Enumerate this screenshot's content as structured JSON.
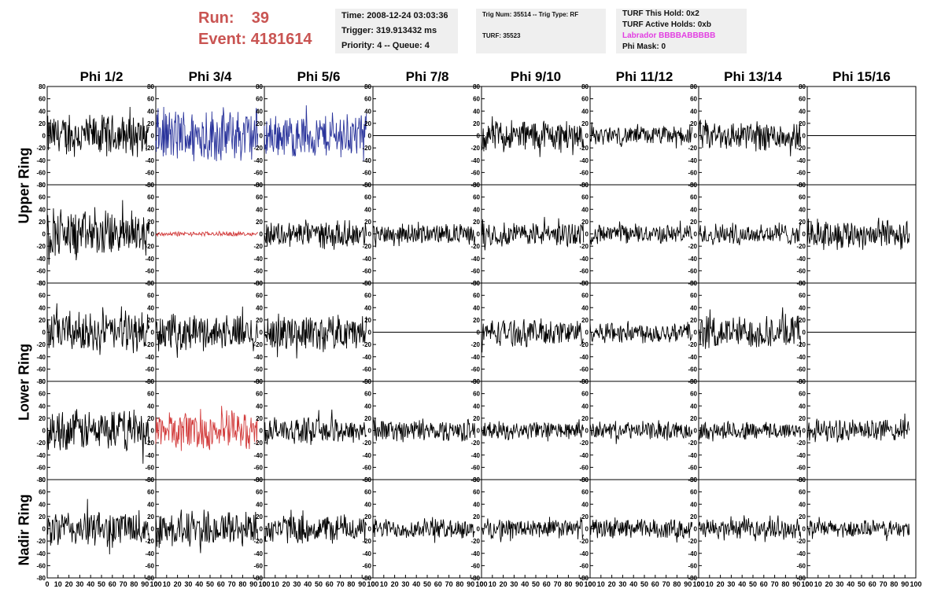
{
  "header": {
    "run_label": "Run:",
    "run_value": "39",
    "event_label": "Event:",
    "event_value": "4181614"
  },
  "info_panel_1": {
    "time": "Time: 2008-12-24 03:03:36",
    "trigger": "Trigger: 319.913432 ms",
    "priority": "Priority: 4 -- Queue: 4"
  },
  "info_panel_2": {
    "trig_line": "Trig Num: 35514 -- Trig Type: RF",
    "turf_line": "TURF: 35523"
  },
  "info_panel_3": {
    "this_hold": "TURF This Hold: 0x2",
    "active_holds": "TURF Active Holds: 0xb",
    "labrador": "Labrador BBBBABBBBB",
    "phi_mask": "Phi Mask: 0"
  },
  "colors": {
    "run_text": "#c95452",
    "labrador_text": "#e23ee2",
    "panel_bg": "#efefef",
    "trace_black": "#000000",
    "trace_blue": "#29339b",
    "trace_red": "#d23b3b"
  },
  "chart_data": {
    "type": "line",
    "columns": [
      "Phi 1/2",
      "Phi 3/4",
      "Phi 5/6",
      "Phi 7/8",
      "Phi 9/10",
      "Phi 11/12",
      "Phi 13/14",
      "Phi 15/16"
    ],
    "rings": [
      {
        "name": "Upper Ring",
        "rows": 2
      },
      {
        "name": "Lower Ring",
        "rows": 2
      },
      {
        "name": "Nadir Ring",
        "rows": 1
      }
    ],
    "ylim": [
      -80,
      80
    ],
    "yticks": [
      -80,
      -60,
      -40,
      -20,
      0,
      20,
      40,
      60,
      80
    ],
    "xlim": [
      0,
      100
    ],
    "xticks": [
      0,
      10,
      20,
      30,
      40,
      50,
      60,
      70,
      80,
      90,
      100
    ],
    "trace_x_end": 94,
    "panels": [
      [
        {
          "amp": 38,
          "color": "black"
        },
        {
          "amp": 50,
          "color": "blue"
        },
        {
          "amp": 40,
          "color": "blue"
        },
        {
          "amp": 0,
          "color": "black"
        },
        {
          "amp": 30,
          "color": "black"
        },
        {
          "amp": 17,
          "color": "black"
        },
        {
          "amp": 28,
          "color": "black"
        },
        {
          "amp": 0,
          "color": "black"
        }
      ],
      [
        {
          "amp": 42,
          "color": "black"
        },
        {
          "amp": 4,
          "color": "red"
        },
        {
          "amp": 24,
          "color": "black"
        },
        {
          "amp": 18,
          "color": "black"
        },
        {
          "amp": 22,
          "color": "black"
        },
        {
          "amp": 17,
          "color": "black"
        },
        {
          "amp": 20,
          "color": "black"
        },
        {
          "amp": 28,
          "color": "black"
        }
      ],
      [
        {
          "amp": 36,
          "color": "black"
        },
        {
          "amp": 32,
          "color": "black"
        },
        {
          "amp": 32,
          "color": "black"
        },
        {
          "amp": 0,
          "color": "black"
        },
        {
          "amp": 24,
          "color": "black"
        },
        {
          "amp": 20,
          "color": "black"
        },
        {
          "amp": 30,
          "color": "black"
        },
        {
          "amp": 0,
          "color": "black"
        }
      ],
      [
        {
          "amp": 38,
          "color": "black"
        },
        {
          "amp": 36,
          "color": "red"
        },
        {
          "amp": 24,
          "color": "black"
        },
        {
          "amp": 20,
          "color": "black"
        },
        {
          "amp": 16,
          "color": "black"
        },
        {
          "amp": 16,
          "color": "black"
        },
        {
          "amp": 17,
          "color": "black"
        },
        {
          "amp": 20,
          "color": "black"
        }
      ],
      [
        {
          "amp": 34,
          "color": "black"
        },
        {
          "amp": 34,
          "color": "black"
        },
        {
          "amp": 26,
          "color": "black"
        },
        {
          "amp": 18,
          "color": "black"
        },
        {
          "amp": 18,
          "color": "black"
        },
        {
          "amp": 18,
          "color": "black"
        },
        {
          "amp": 18,
          "color": "black"
        },
        {
          "amp": 16,
          "color": "black"
        }
      ]
    ]
  }
}
